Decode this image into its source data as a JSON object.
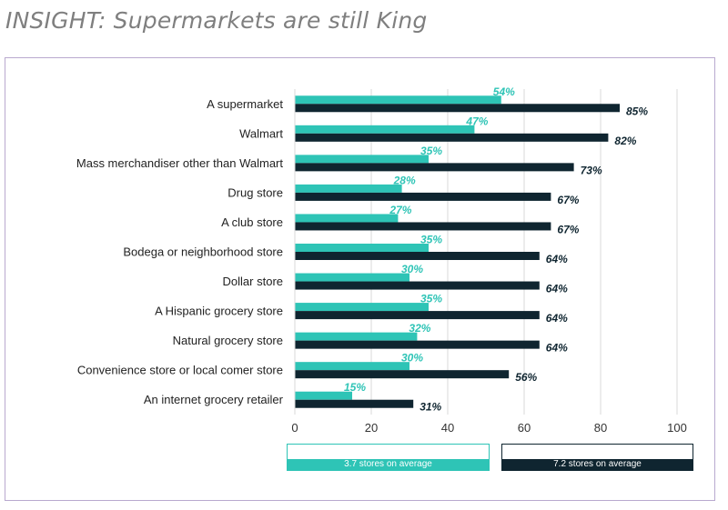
{
  "slide": {
    "title": "INSIGHT: Supermarkets are still King"
  },
  "colors": {
    "series_a": "#2ec4b6",
    "series_b": "#0f2530",
    "frame": "#b9a9cf",
    "grid": "#d9d9d9"
  },
  "legend": [
    {
      "note": "3.7 stores on average"
    },
    {
      "note": "7.2 stores on average"
    }
  ],
  "chart_data": {
    "type": "bar",
    "orientation": "horizontal",
    "categories": [
      "A supermarket",
      "Walmart",
      "Mass merchandiser other than Walmart",
      "Drug store",
      "A club store",
      "Bodega or neighborhood store",
      "Dollar store",
      "A Hispanic grocery store",
      "Natural grocery store",
      "Convenience store or local comer store",
      "An internet grocery retailer"
    ],
    "series": [
      {
        "values": [
          54,
          47,
          35,
          28,
          27,
          35,
          30,
          35,
          32,
          30,
          15
        ],
        "labels": [
          "54%",
          "47%",
          "35%",
          "28%",
          "27%",
          "35%",
          "30%",
          "35%",
          "32%",
          "30%",
          "15%"
        ]
      },
      {
        "values": [
          85,
          82,
          73,
          67,
          67,
          64,
          64,
          64,
          64,
          56,
          31
        ],
        "labels": [
          "85%",
          "82%",
          "73%",
          "67%",
          "67%",
          "64%",
          "64%",
          "64%",
          "64%",
          "56%",
          "31%"
        ]
      }
    ],
    "xlim": [
      0,
      100
    ],
    "xticks": [
      0,
      20,
      40,
      60,
      80,
      100
    ],
    "xtick_labels": [
      "0",
      "20",
      "40",
      "60",
      "80",
      "100"
    ],
    "grid": true,
    "legend_position": "bottom"
  }
}
